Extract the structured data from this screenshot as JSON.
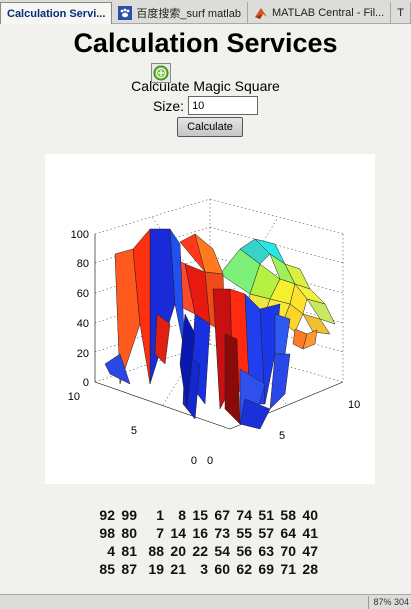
{
  "tabs": [
    {
      "label": "Calculation Servi...",
      "icon": "page-icon"
    },
    {
      "label": "百度搜索_surf matlab",
      "icon": "paw-icon"
    },
    {
      "label": "MATLAB Central - Fil...",
      "icon": "matlab-icon"
    },
    {
      "label": "T",
      "icon": ""
    }
  ],
  "page": {
    "title": "Calculation Services",
    "subtitle": "Calculate Magic Square",
    "size_label": "Size:",
    "size_value": "10",
    "button_label": "Calculate"
  },
  "chart_data": {
    "type": "surface",
    "title": "",
    "x_ticks": [
      "0",
      "5",
      "10"
    ],
    "y_ticks": [
      "0",
      "5",
      "10"
    ],
    "z_ticks": [
      "0",
      "20",
      "40",
      "60",
      "80",
      "100"
    ],
    "zlim": [
      0,
      100
    ],
    "grid": true,
    "colormap": "jet"
  },
  "matrix": [
    [
      92,
      99,
      1,
      8,
      15,
      67,
      74,
      51,
      58,
      40
    ],
    [
      98,
      80,
      7,
      14,
      16,
      73,
      55,
      57,
      64,
      41
    ],
    [
      4,
      81,
      88,
      20,
      22,
      54,
      56,
      63,
      70,
      47
    ],
    [
      85,
      87,
      19,
      21,
      3,
      60,
      62,
      69,
      71,
      28
    ]
  ],
  "status": {
    "text": "87% 304"
  }
}
